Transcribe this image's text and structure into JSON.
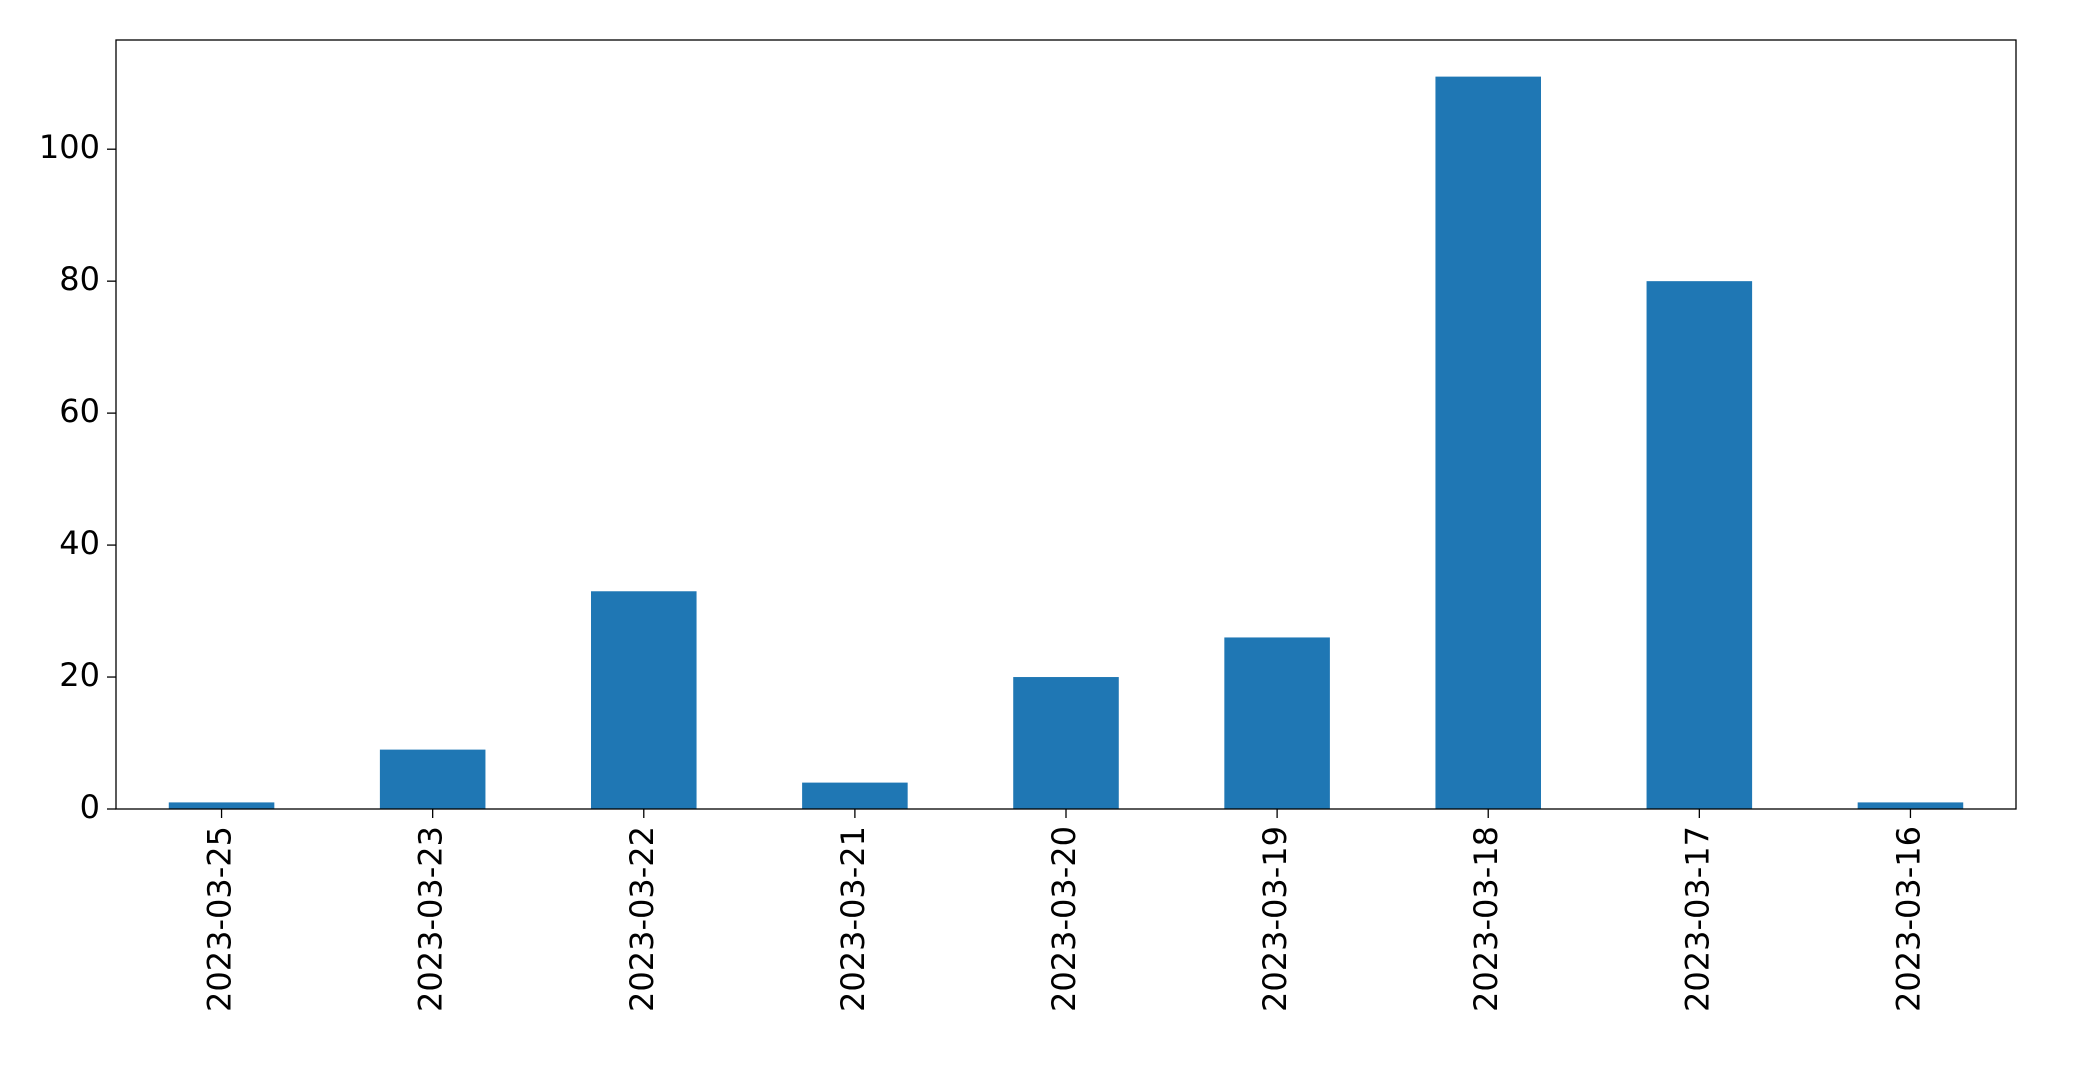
{
  "chart_data": {
    "type": "bar",
    "categories": [
      "2023-03-25",
      "2023-03-23",
      "2023-03-22",
      "2023-03-21",
      "2023-03-20",
      "2023-03-19",
      "2023-03-18",
      "2023-03-17",
      "2023-03-16"
    ],
    "values": [
      1,
      9,
      33,
      4,
      20,
      26,
      111,
      80,
      1
    ],
    "color": "#1f77b4",
    "ylim": [
      0,
      116.55
    ],
    "yticks": [
      0,
      20,
      40,
      60,
      80,
      100
    ],
    "grid": false
  }
}
